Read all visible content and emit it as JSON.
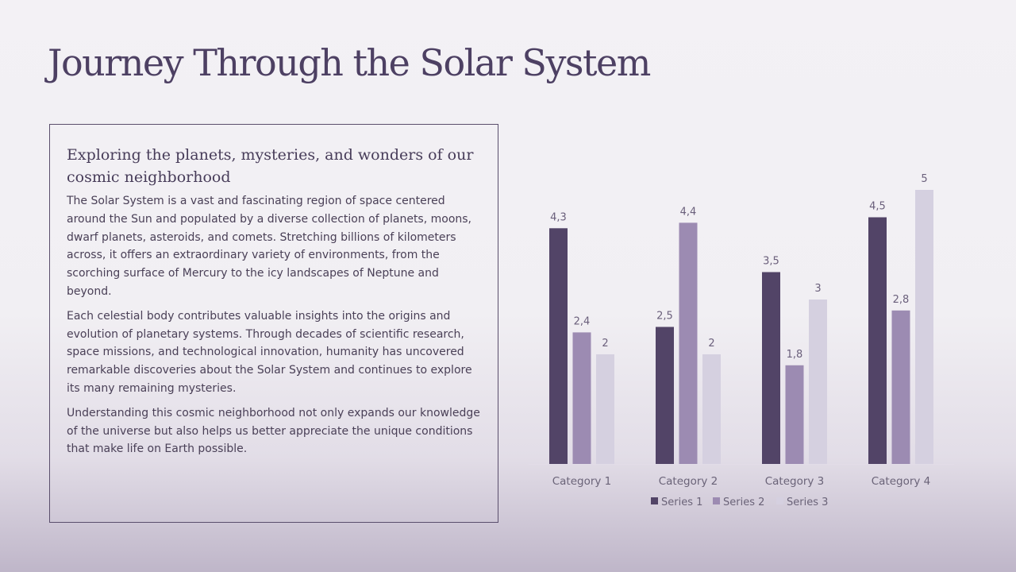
{
  "slide": {
    "title": "Journey Through the Solar System",
    "subtitle": "Exploring the planets, mysteries, and wonders of our cosmic neighborhood",
    "paragraphs": [
      "The Solar System is a vast and fascinating region of space centered around the Sun and populated by a diverse collection of planets, moons, dwarf planets, asteroids, and comets. Stretching billions of kilometers across, it offers an extraordinary variety of environments, from the scorching surface of Mercury to the icy landscapes of Neptune and beyond.",
      "Each celestial body contributes valuable insights into the origins and evolution of planetary systems. Through decades of scientific research, space missions, and technological innovation, humanity has uncovered remarkable discoveries about the Solar System and continues to explore its many remaining mysteries.",
      "Understanding this cosmic neighborhood not only expands our knowledge of the universe but also helps us better appreciate the unique conditions that make life on Earth possible."
    ]
  },
  "colors": {
    "title": "#4d4063",
    "series_1": "#524467",
    "series_2": "#9c8bb2",
    "series_3": "#d5d0e0"
  },
  "chart_data": {
    "type": "bar",
    "title": "",
    "xlabel": "",
    "ylabel": "",
    "categories": [
      "Category 1",
      "Category 2",
      "Category 3",
      "Category 4"
    ],
    "series": [
      {
        "name": "Series 1",
        "values": [
          4.3,
          2.5,
          3.5,
          4.5
        ],
        "labels": [
          "4,3",
          "2,5",
          "3,5",
          "4,5"
        ],
        "color": "#524467"
      },
      {
        "name": "Series 2",
        "values": [
          2.4,
          4.4,
          1.8,
          2.8
        ],
        "labels": [
          "2,4",
          "4,4",
          "1,8",
          "2,8"
        ],
        "color": "#9c8bb2"
      },
      {
        "name": "Series 3",
        "values": [
          2,
          2,
          3,
          5
        ],
        "labels": [
          "2",
          "2",
          "3",
          "5"
        ],
        "color": "#d5d0e0"
      }
    ],
    "ylim": [
      0,
      5
    ],
    "y_axis_visible": false,
    "grid": false,
    "data_labels": true,
    "legend": "bottom"
  }
}
